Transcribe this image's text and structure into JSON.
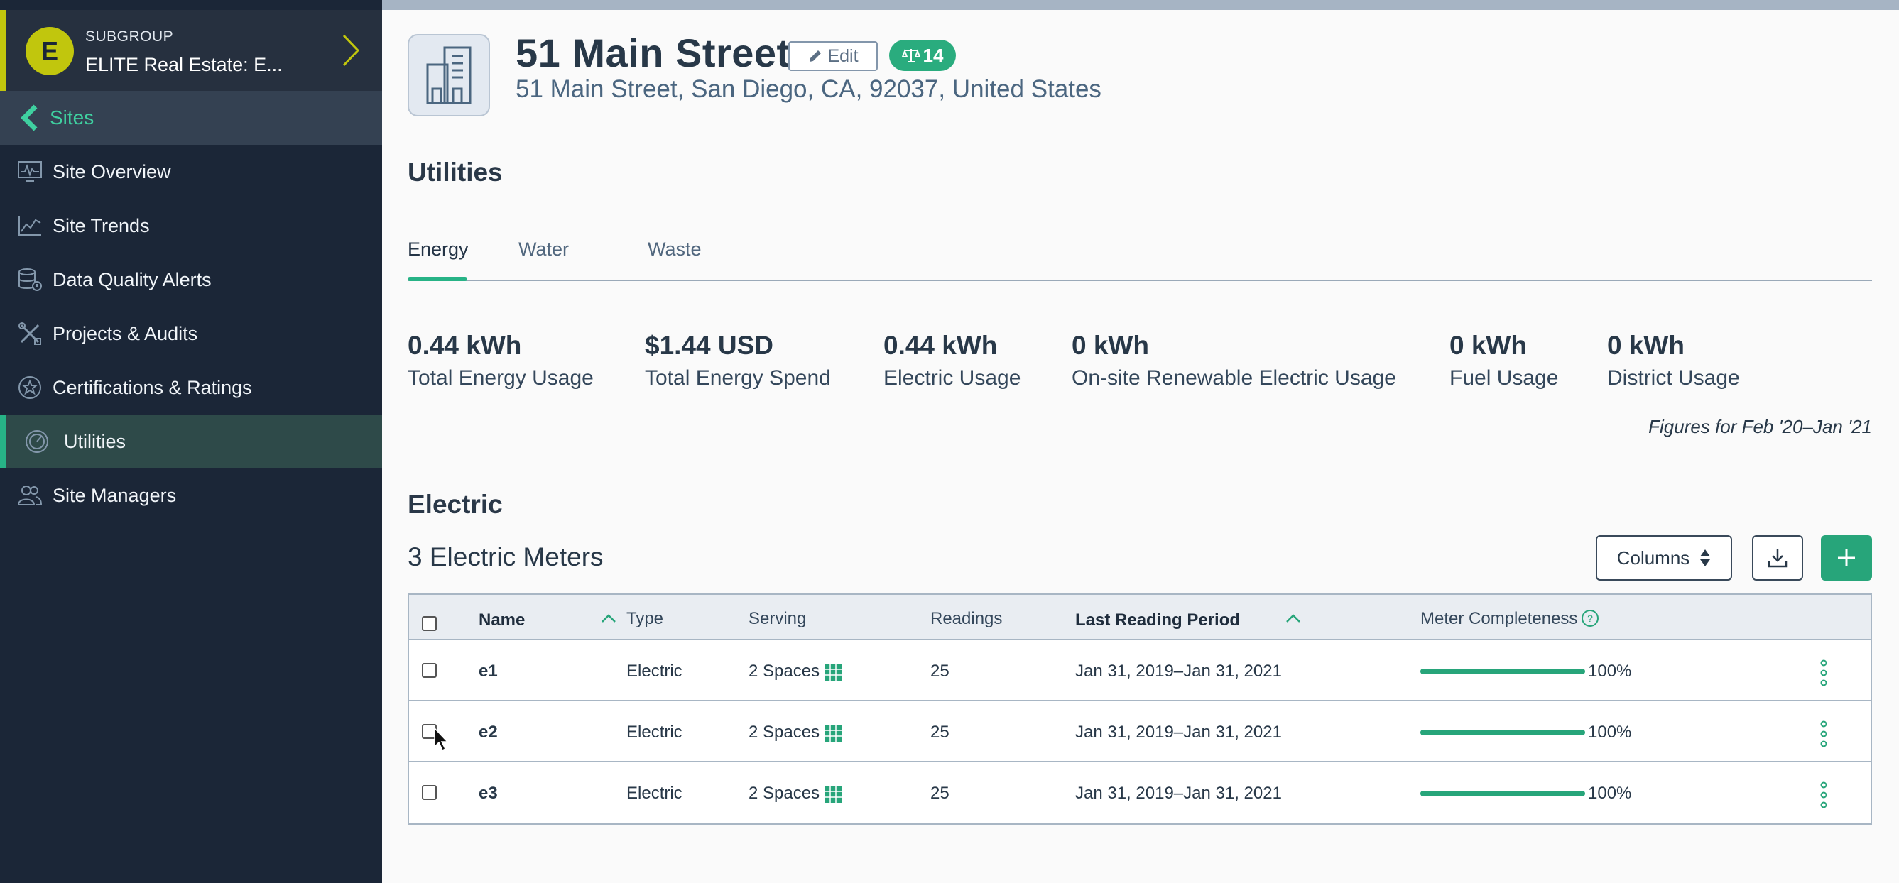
{
  "sidebar": {
    "subgroup_label": "SUBGROUP",
    "subgroup_name": "ELITE Real Estate: E...",
    "avatar_letter": "E",
    "back_label": "Sites",
    "items": [
      {
        "label": "Site Overview",
        "icon": "chart-monitor-icon"
      },
      {
        "label": "Site Trends",
        "icon": "trend-line-icon"
      },
      {
        "label": "Data Quality Alerts",
        "icon": "database-alert-icon"
      },
      {
        "label": "Projects & Audits",
        "icon": "tools-icon"
      },
      {
        "label": "Certifications & Ratings",
        "icon": "certificate-star-icon"
      },
      {
        "label": "Utilities",
        "icon": "gauge-icon",
        "active": true
      },
      {
        "label": "Site Managers",
        "icon": "users-icon"
      }
    ]
  },
  "header": {
    "title": "51 Main Street",
    "edit_label": "Edit",
    "badge_count": "14",
    "address": "51 Main Street, San Diego, CA, 92037, United States"
  },
  "utilities": {
    "heading": "Utilities",
    "tabs": [
      "Energy",
      "Water",
      "Waste"
    ],
    "active_tab": "Energy",
    "metrics": [
      {
        "value": "0.44 kWh",
        "label": "Total Energy Usage"
      },
      {
        "value": "$1.44 USD",
        "label": "Total Energy Spend"
      },
      {
        "value": "0.44 kWh",
        "label": "Electric Usage"
      },
      {
        "value": "0 kWh",
        "label": "On-site Renewable Electric Usage"
      },
      {
        "value": "0 kWh",
        "label": "Fuel Usage"
      },
      {
        "value": "0 kWh",
        "label": "District Usage"
      }
    ],
    "figures_note": "Figures for Feb '20–Jan '21"
  },
  "electric": {
    "heading": "Electric",
    "meters_title": "3 Electric Meters",
    "columns_label": "Columns",
    "table": {
      "headers": [
        "Name",
        "Type",
        "Serving",
        "Readings",
        "Last Reading Period",
        "Meter Completeness"
      ],
      "rows": [
        {
          "name": "e1",
          "type": "Electric",
          "serving": "2 Spaces",
          "readings": "25",
          "period": "Jan 31, 2019–Jan 31, 2021",
          "completeness": "100%",
          "completeness_value": 1.0
        },
        {
          "name": "e2",
          "type": "Electric",
          "serving": "2 Spaces",
          "readings": "25",
          "period": "Jan 31, 2019–Jan 31, 2021",
          "completeness": "100%",
          "completeness_value": 1.0
        },
        {
          "name": "e3",
          "type": "Electric",
          "serving": "2 Spaces",
          "readings": "25",
          "period": "Jan 31, 2019–Jan 31, 2021",
          "completeness": "100%",
          "completeness_value": 1.0
        }
      ]
    }
  },
  "colors": {
    "accent": "#27b386",
    "sidebar_bg": "#1b2637",
    "subgroup_accent": "#c1c60d"
  }
}
